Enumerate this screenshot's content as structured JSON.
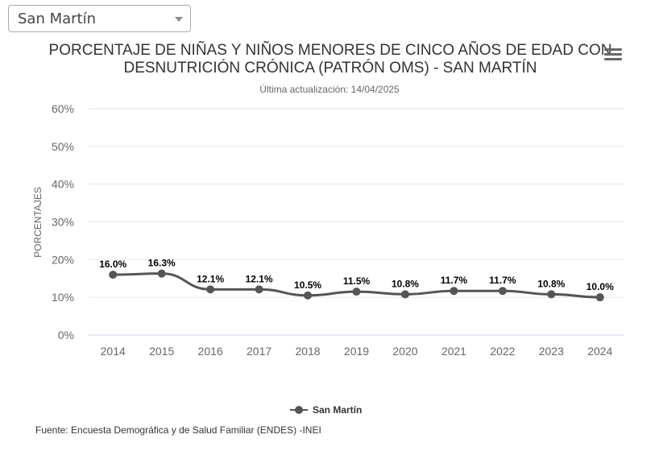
{
  "region_select": {
    "value": "San Martín"
  },
  "header": {
    "title_line1": "PORCENTAJE DE NIÑAS Y NIÑOS MENORES DE CINCO AÑOS DE EDAD CON",
    "title_line2": "DESNUTRICIÓN CRÓNICA (PATRÓN OMS) - SAN MARTÍN",
    "subtitle": "Última actualización: 14/04/2025",
    "menu_icon": "hamburger-menu-icon"
  },
  "legend": {
    "label": "San Martín"
  },
  "source": "Fuente: Encuesta Demográfica y de Salud Familiar (ENDES) -INEI",
  "colors": {
    "series": "#555555",
    "grid": "#e6e6e6",
    "axis": "#ccd6eb",
    "tick_text": "#666666"
  },
  "chart_data": {
    "type": "line",
    "title": "PORCENTAJE DE NIÑAS Y NIÑOS MENORES DE CINCO AÑOS DE EDAD CON DESNUTRICIÓN CRÓNICA (PATRÓN OMS) - SAN MARTÍN",
    "subtitle": "Última actualización: 14/04/2025",
    "xlabel": "",
    "ylabel": "PORCENTAJES",
    "categories": [
      "2014",
      "2015",
      "2016",
      "2017",
      "2018",
      "2019",
      "2020",
      "2021",
      "2022",
      "2023",
      "2024"
    ],
    "series": [
      {
        "name": "San Martín",
        "values": [
          16.0,
          16.3,
          12.1,
          12.1,
          10.5,
          11.5,
          10.8,
          11.7,
          11.7,
          10.8,
          10.0
        ],
        "labels": [
          "16.0%",
          "16.3%",
          "12.1%",
          "12.1%",
          "10.5%",
          "11.5%",
          "10.8%",
          "11.7%",
          "11.7%",
          "10.8%",
          "10.0%"
        ]
      }
    ],
    "ylim": [
      0,
      60
    ],
    "yticks": [
      0,
      10,
      20,
      30,
      40,
      50,
      60
    ],
    "ytick_labels": [
      "0%",
      "10%",
      "20%",
      "30%",
      "40%",
      "50%",
      "60%"
    ],
    "grid": true,
    "legend_position": "bottom-center"
  }
}
